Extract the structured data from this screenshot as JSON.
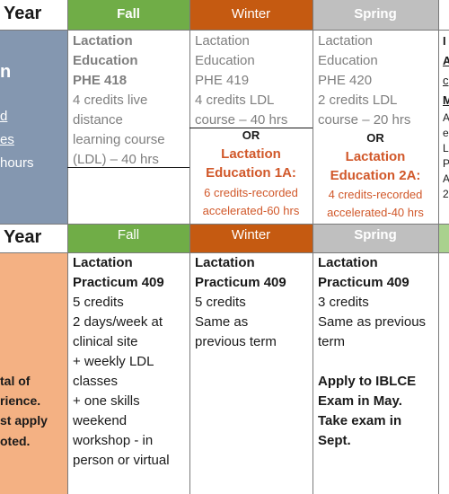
{
  "top": {
    "year_label": "Year",
    "headers": {
      "fall": "Fall",
      "winter": "Winter",
      "spring": "Spring"
    },
    "left_fragments": [
      "n",
      "d",
      "es",
      "hours"
    ],
    "fall": [
      "Lactation",
      "Education",
      "PHE 418",
      "4 credits live",
      "distance",
      "learning course",
      "(LDL) – 40 hrs"
    ],
    "winter": [
      "Lactation",
      "Education",
      "PHE 419",
      "4 credits LDL",
      "course – 40 hrs"
    ],
    "winter_or": "OR",
    "winter_alt_title": [
      "Lactation",
      "Education 1A:"
    ],
    "winter_alt_detail": [
      "6 credits-recorded",
      "accelerated-60 hrs"
    ],
    "spring": [
      "Lactation",
      "Education",
      "PHE 420",
      "2 credits LDL",
      "course – 20 hrs"
    ],
    "spring_or": "OR",
    "spring_alt_title": [
      "Lactation",
      "Education 2A:"
    ],
    "spring_alt_detail": [
      "4 credits-recorded",
      "accelerated-40 hrs"
    ],
    "right_fragments": [
      "I",
      "A",
      "c",
      "M",
      "A",
      "e",
      "L",
      "P",
      "A",
      "2"
    ]
  },
  "bottom": {
    "year_label": "Year",
    "headers": {
      "fall": "Fall",
      "winter": "Winter",
      "spring": "Spring"
    },
    "left_fragments": [
      "tal of",
      "rience.",
      "st apply",
      "oted."
    ],
    "fall_title": [
      "Lactation",
      "Practicum 409"
    ],
    "fall": [
      "5 credits",
      "2 days/week at",
      "clinical site",
      "+ weekly LDL",
      "classes",
      "+ one skills",
      "weekend",
      "workshop - in",
      "person or virtual"
    ],
    "winter_title": [
      "Lactation",
      "Practicum 409"
    ],
    "winter": [
      "5 credits",
      "Same as",
      "previous term"
    ],
    "spring_title": [
      "Lactation",
      "Practicum 409"
    ],
    "spring": [
      "3 credits",
      "Same as previous",
      "term"
    ],
    "spring_note": [
      "Apply to IBLCE",
      "Exam in May.",
      "Take exam in",
      "Sept."
    ]
  },
  "colors": {
    "fall_header": "#70ad47",
    "winter_header": "#c55a11",
    "spring_header": "#bfbfbf",
    "top_side": "#8497b0",
    "bottom_side": "#f4b183",
    "orange_text": "#d1582a"
  }
}
